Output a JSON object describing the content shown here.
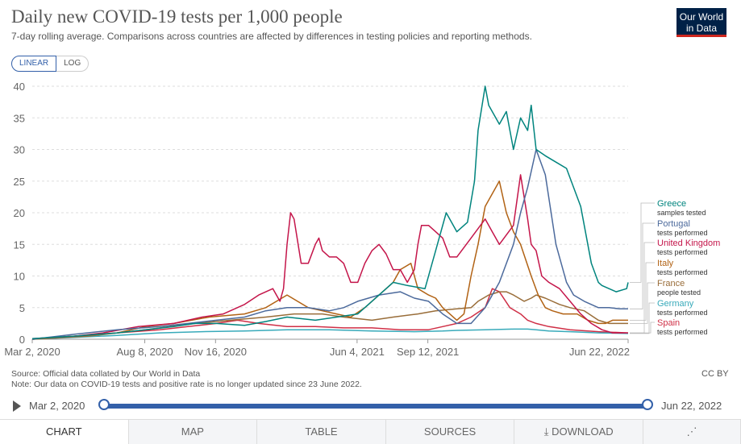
{
  "header": {
    "title": "Daily new COVID-19 tests per 1,000 people",
    "subtitle": "7-day rolling average. Comparisons across countries are affected by differences in testing policies and reporting methods.",
    "logo_line1": "Our World",
    "logo_line2": "in Data"
  },
  "scale_toggle": {
    "linear": "LINEAR",
    "log": "LOG"
  },
  "chart_data": {
    "type": "line",
    "title": "Daily new COVID-19 tests per 1,000 people",
    "ylim": [
      0,
      40
    ],
    "yticks": [
      "0",
      "5",
      "10",
      "15",
      "20",
      "25",
      "30",
      "35",
      "40"
    ],
    "xlim": [
      0,
      842
    ],
    "xticks": [
      {
        "label": "Mar 2, 2020",
        "day": 0
      },
      {
        "label": "Aug 8, 2020",
        "day": 159
      },
      {
        "label": "Nov 16, 2020",
        "day": 259
      },
      {
        "label": "Jun 4, 2021",
        "day": 459
      },
      {
        "label": "Sep 12, 2021",
        "day": 559
      },
      {
        "label": "Jun 22, 2022",
        "day": 842
      }
    ],
    "series": [
      {
        "name": "Greece",
        "unit": "samples tested",
        "color": "#00847e",
        "x": [
          0,
          60,
          120,
          160,
          200,
          230,
          260,
          300,
          330,
          360,
          400,
          430,
          460,
          480,
          510,
          530,
          555,
          570,
          585,
          600,
          615,
          625,
          630,
          640,
          645,
          660,
          670,
          680,
          690,
          700,
          705,
          712,
          725,
          740,
          755,
          765,
          775,
          790,
          800,
          805,
          815,
          825,
          840,
          842
        ],
        "y": [
          0.1,
          0.5,
          1,
          1.5,
          2,
          2.5,
          2.5,
          2.2,
          2.8,
          3.5,
          3,
          3.5,
          4,
          6,
          9,
          8.5,
          8,
          14,
          20,
          17,
          18.5,
          25,
          33,
          40,
          37,
          34,
          36,
          30,
          35,
          33,
          37,
          30,
          29,
          28,
          27,
          24,
          21,
          12,
          9,
          8.5,
          8,
          7.5,
          8,
          9
        ]
      },
      {
        "name": "Portugal",
        "unit": "tests performed",
        "color": "#4c6a9c",
        "x": [
          0,
          60,
          120,
          180,
          220,
          260,
          300,
          330,
          360,
          390,
          420,
          440,
          460,
          490,
          520,
          540,
          560,
          580,
          600,
          620,
          640,
          660,
          680,
          690,
          700,
          712,
          725,
          740,
          755,
          765,
          780,
          800,
          815,
          830,
          842
        ],
        "y": [
          0,
          0.8,
          1.5,
          2,
          2.5,
          3,
          3.5,
          4.5,
          5,
          5,
          4.5,
          5,
          6,
          7,
          7.5,
          6.5,
          6,
          4,
          2.5,
          2.5,
          5,
          9,
          15,
          20,
          24,
          30,
          26,
          15,
          9,
          7,
          6,
          5,
          5,
          4.8,
          4.8
        ]
      },
      {
        "name": "United Kingdom",
        "unit": "tests performed",
        "color": "#c4154a",
        "x": [
          0,
          60,
          100,
          150,
          200,
          240,
          270,
          300,
          320,
          340,
          350,
          355,
          360,
          365,
          370,
          380,
          390,
          400,
          405,
          410,
          420,
          430,
          440,
          450,
          460,
          470,
          480,
          490,
          500,
          510,
          520,
          530,
          540,
          545,
          550,
          560,
          570,
          580,
          590,
          600,
          620,
          640,
          650,
          660,
          680,
          690,
          700,
          705,
          712,
          720,
          730,
          745,
          760,
          775,
          790,
          805,
          820,
          842
        ],
        "y": [
          0.1,
          0.5,
          1,
          2,
          2.5,
          3.5,
          4,
          5.5,
          7,
          8,
          6,
          8,
          15,
          20,
          19,
          12,
          12,
          15,
          16,
          14,
          13,
          13,
          12,
          9,
          9,
          12,
          14,
          15,
          13.5,
          11,
          11,
          9,
          11,
          15,
          18,
          18,
          17,
          16,
          13,
          13,
          16,
          19,
          17,
          15,
          18,
          26,
          19,
          15,
          14,
          10,
          9,
          8,
          6,
          4,
          2.5,
          1.5,
          1,
          1
        ]
      },
      {
        "name": "Italy",
        "unit": "tests performed",
        "color": "#b16214",
        "x": [
          0,
          60,
          120,
          160,
          200,
          250,
          300,
          330,
          360,
          390,
          410,
          430,
          450,
          470,
          490,
          510,
          520,
          535,
          545,
          560,
          570,
          580,
          590,
          600,
          610,
          620,
          630,
          640,
          660,
          670,
          680,
          690,
          705,
          715,
          725,
          735,
          750,
          770,
          785,
          800,
          810,
          820,
          842
        ],
        "y": [
          0,
          0.5,
          1,
          2,
          2.5,
          3.5,
          4,
          5,
          7,
          5,
          4.5,
          4,
          3.5,
          5,
          7,
          9,
          11,
          12,
          8,
          7,
          6.5,
          5,
          4,
          3,
          4,
          10,
          15,
          21,
          25,
          20,
          17,
          15,
          10,
          7,
          5,
          4.5,
          4,
          4,
          3,
          2.5,
          2.5,
          3,
          3
        ]
      },
      {
        "name": "France",
        "unit": "people tested",
        "color": "#996d39",
        "x": [
          0,
          80,
          160,
          230,
          280,
          330,
          370,
          410,
          440,
          480,
          510,
          545,
          570,
          600,
          620,
          630,
          645,
          660,
          670,
          680,
          695,
          705,
          712,
          725,
          745,
          760,
          780,
          800,
          815,
          830,
          842
        ],
        "y": [
          0,
          0.5,
          1.5,
          2.5,
          3,
          3.5,
          4,
          4,
          3.5,
          3,
          3.5,
          4,
          4.5,
          4.8,
          5,
          6,
          7,
          7.5,
          7.5,
          7,
          6,
          6.5,
          7,
          6.5,
          5.5,
          5,
          4.5,
          3,
          2.5,
          2.5,
          2.5
        ]
      },
      {
        "name": "Germany",
        "unit": "tests performed",
        "color": "#38aaba",
        "x": [
          0,
          60,
          120,
          180,
          240,
          300,
          360,
          420,
          480,
          540,
          580,
          600,
          640,
          680,
          700,
          712,
          730,
          760,
          800,
          842
        ],
        "y": [
          0,
          0.3,
          0.6,
          1,
          1.2,
          1.3,
          1.5,
          1.5,
          1.3,
          1.2,
          1.3,
          1.4,
          1.5,
          1.6,
          1.6,
          1.5,
          1.3,
          1.2,
          1,
          0.9
        ]
      },
      {
        "name": "Spain",
        "unit": "tests performed",
        "color": "#cf2f46",
        "x": [
          0,
          60,
          120,
          180,
          220,
          260,
          290,
          320,
          360,
          400,
          440,
          480,
          520,
          560,
          580,
          600,
          620,
          640,
          650,
          660,
          675,
          690,
          700,
          712,
          730,
          760,
          800,
          842
        ],
        "y": [
          0,
          0.5,
          1,
          1.5,
          2,
          2.5,
          3,
          2.5,
          2,
          2,
          1.8,
          1.8,
          1.5,
          1.5,
          2,
          2.5,
          3.5,
          5,
          8,
          7.5,
          5,
          4,
          3,
          2.5,
          2,
          1.5,
          1.2,
          1
        ]
      }
    ]
  },
  "footer": {
    "source": "Source: Official data collated by Our World in Data",
    "note": "Note: Our data on COVID-19 tests and positive rate is no longer updated since 23 June 2022.",
    "license": "CC BY"
  },
  "timeline": {
    "start": "Mar 2, 2020",
    "end": "Jun 22, 2022",
    "start_fraction": 0,
    "end_fraction": 1
  },
  "tabs": [
    "CHART",
    "MAP",
    "TABLE",
    "SOURCES",
    "DOWNLOAD"
  ]
}
